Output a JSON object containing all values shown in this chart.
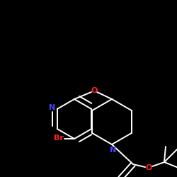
{
  "background_color": "#000000",
  "bond_color": "#ffffff",
  "nitrogen_color": "#4444ff",
  "oxygen_color": "#ff2222",
  "bromine_color": "#ff2222",
  "figsize": [
    2.5,
    2.5
  ],
  "dpi": 100,
  "xlim": [
    0,
    250
  ],
  "ylim": [
    0,
    250
  ]
}
